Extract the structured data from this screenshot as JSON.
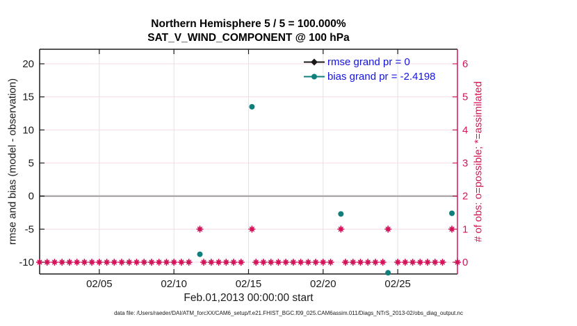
{
  "chart_data": {
    "type": "scatter",
    "title": "Northern Hemisphere 5 / 5 = 100.000%",
    "subtitle": "SAT_V_WIND_COMPONENT @ 100 hPa",
    "xlabel": "Feb.01,2013 00:00:00 start",
    "ylabel_left": "rmse and bias (model - observation)",
    "ylabel_right": "# of obs: o=possible; *=assimilated",
    "x_tick_labels": [
      "02/05",
      "02/10",
      "02/15",
      "02/20",
      "02/25"
    ],
    "x_tick_days": [
      5,
      10,
      15,
      20,
      25
    ],
    "x_range_days": [
      1,
      29
    ],
    "left_ticks": [
      20,
      15,
      10,
      5,
      0,
      -5,
      -10
    ],
    "left_axis_range": [
      -11.8,
      22.2
    ],
    "right_ticks": [
      0,
      1,
      2,
      3,
      4,
      5,
      6
    ],
    "right_axis_range": [
      -0.36,
      6.44
    ],
    "zero_reference_line_value": 0,
    "grid": {
      "vertical": true,
      "horizontal_right_ticks": true
    },
    "legend": [
      {
        "label": "rmse grand pr = 0",
        "color": "#1a1a1a",
        "marker": "diamond"
      },
      {
        "label": "bias grand pr = -2.4198",
        "color": "#0e7f7a",
        "marker": "circle"
      }
    ],
    "legend_position": "upper-right-inside",
    "series": [
      {
        "name": "rmse",
        "axis": "left",
        "color": "#1a1a1a",
        "marker": "diamond",
        "points": []
      },
      {
        "name": "bias",
        "axis": "left",
        "color": "#0e7f7a",
        "marker": "circle",
        "points": [
          [
            11.74,
            -8.8
          ],
          [
            15.23,
            13.5
          ],
          [
            21.19,
            -2.7
          ],
          [
            24.35,
            -11.6
          ],
          [
            28.63,
            -2.6
          ]
        ]
      },
      {
        "name": "obs_counts",
        "axis": "right",
        "color": "#d2145a",
        "marker": "o-plus-asterisk",
        "zero_band": {
          "start_day": 1.0,
          "end_day": 29.0,
          "step_days": 0.5,
          "count": 0
        },
        "raised": [
          [
            11.74,
            1
          ],
          [
            15.23,
            1
          ],
          [
            21.19,
            1
          ],
          [
            24.35,
            1
          ],
          [
            28.63,
            1
          ]
        ]
      }
    ],
    "colors": {
      "crimson": "#d2145a",
      "teal": "#0e7f7a",
      "legend_text_blue": "#1414e0",
      "axis_black": "#1a1a1a",
      "grid_gray": "#e2e2e2",
      "grid_pink": "#f7dce6",
      "zero_line_gray": "#b0abab"
    },
    "footer": "data file: /Users/raeder/DAI/ATM_forcXX/CAM6_setup/f.e21.FHIST_BGC.f09_025.CAM6assim.011/Diags_NTrS_2013-02/obs_diag_output.nc"
  }
}
